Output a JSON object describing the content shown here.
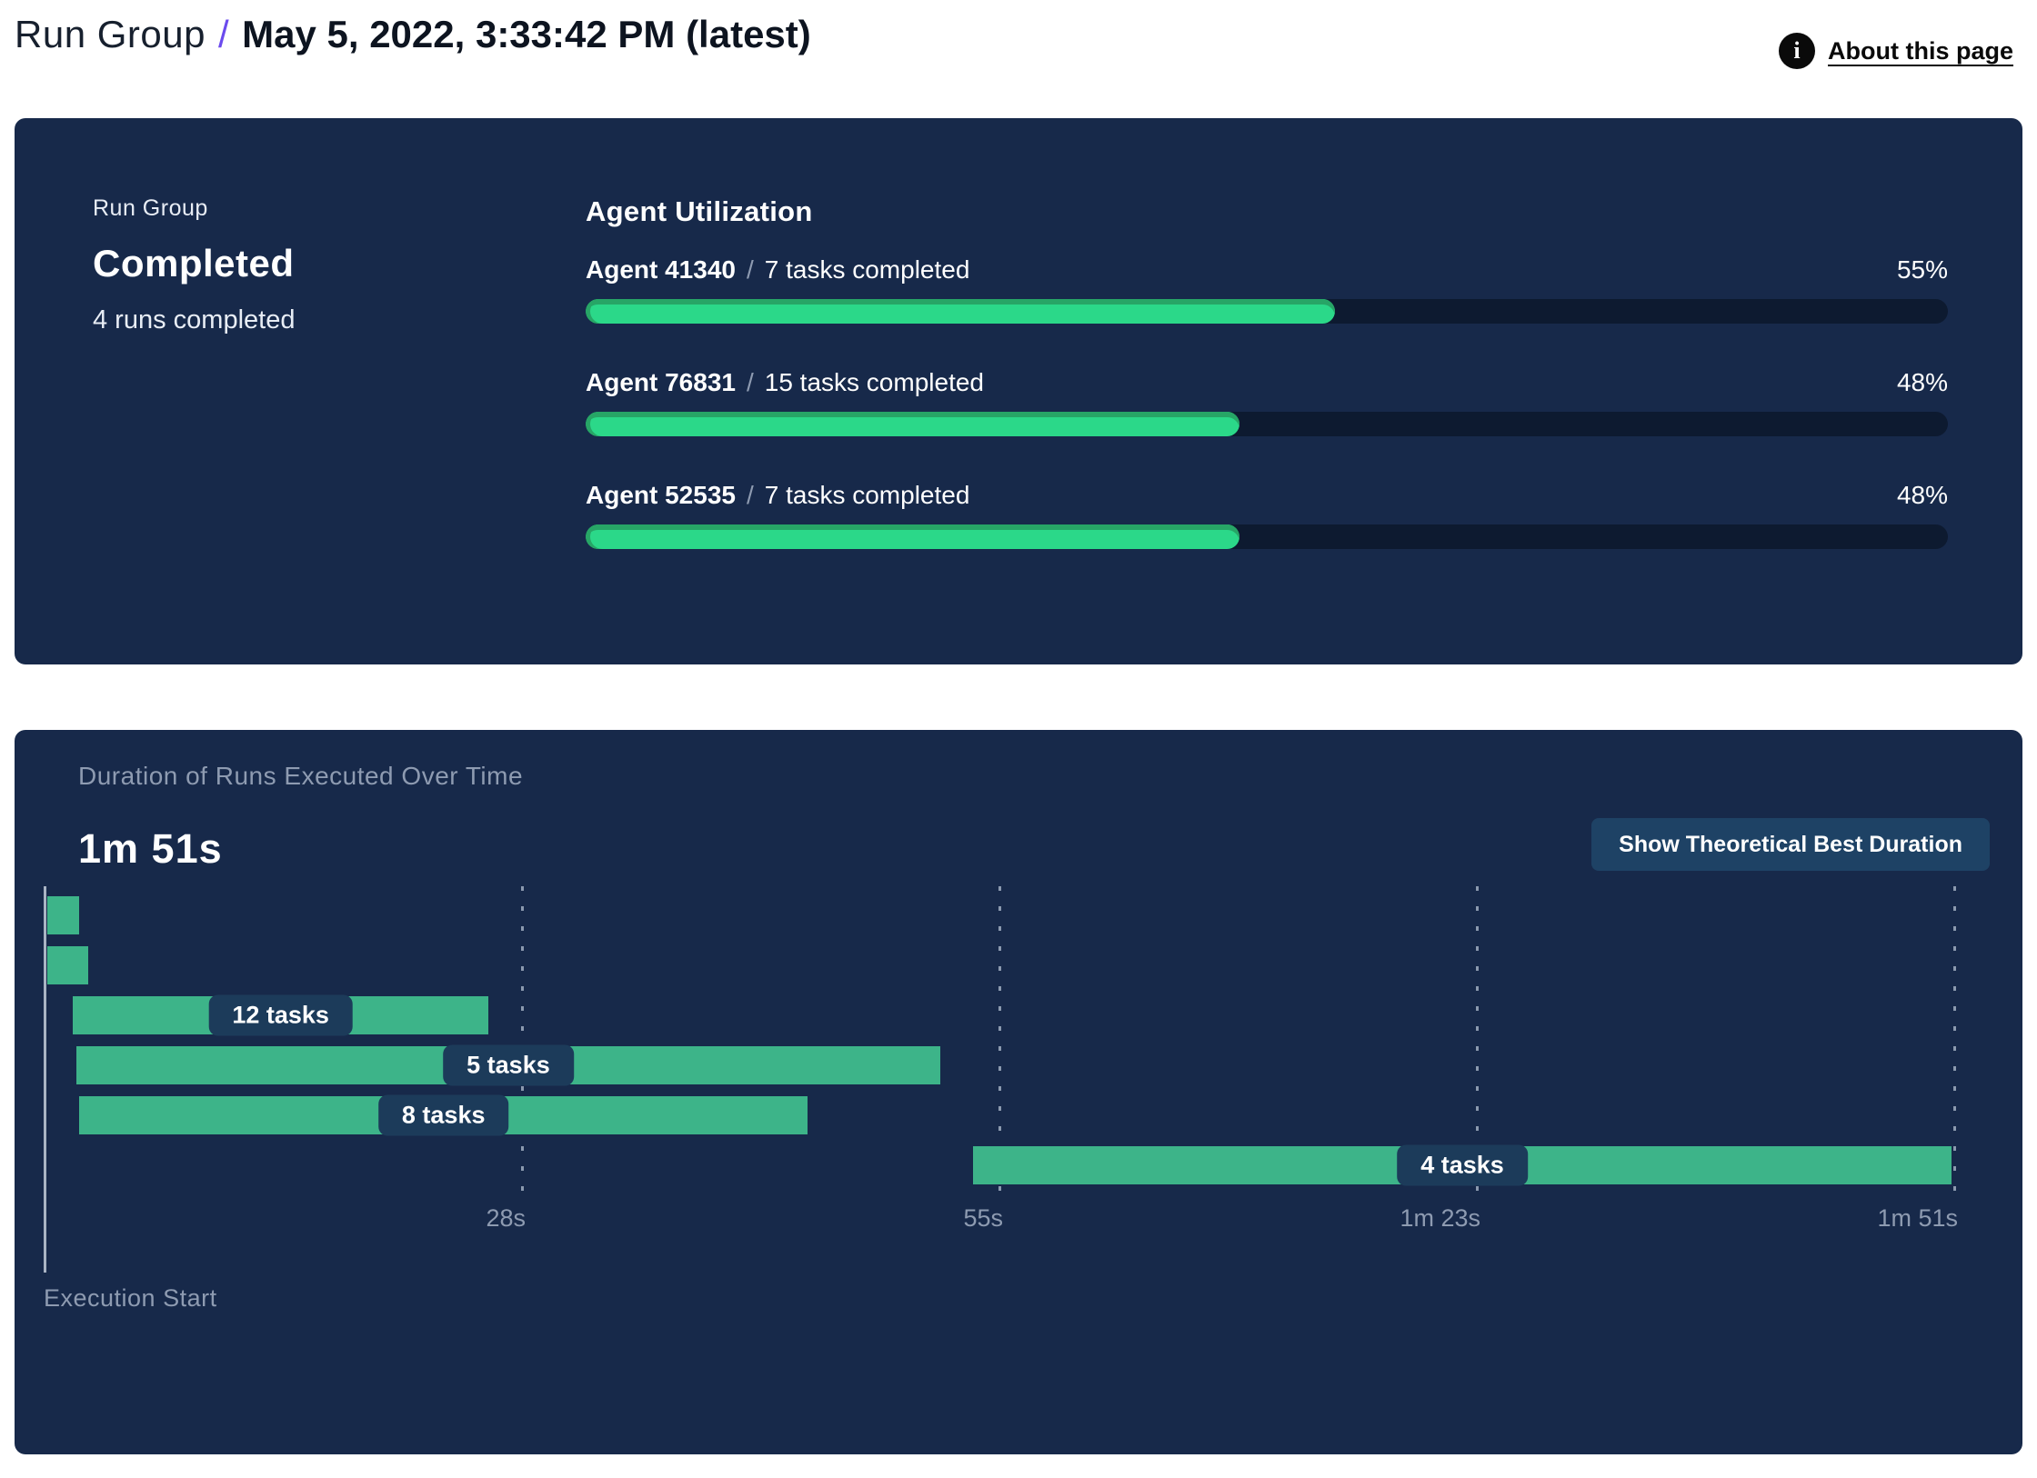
{
  "header": {
    "breadcrumb_group": "Run Group",
    "separator": "/",
    "title": "May 5, 2022, 3:33:42 PM (latest)",
    "about_link": "About this page",
    "info_icon_glyph": "i"
  },
  "colors": {
    "panel_navy": "#17294a",
    "progress_track": "#0d1a30",
    "progress_green": "#2bd889",
    "progress_green_rim": "#27a566",
    "gantt_green": "#3db489",
    "label_pill_navy": "#1c3b5a",
    "muted_text": "#8e9bb1",
    "button_blue": "#1e4265",
    "accent_purple": "#6b4bee"
  },
  "run_group_panel": {
    "label": "Run Group",
    "status": "Completed",
    "runs_completed": "4 runs completed",
    "utilization_heading": "Agent Utilization",
    "agents": [
      {
        "name": "Agent 41340",
        "separator": "/",
        "tasks": "7 tasks completed",
        "percent": 55,
        "percent_label": "55%"
      },
      {
        "name": "Agent 76831",
        "separator": "/",
        "tasks": "15 tasks completed",
        "percent": 48,
        "percent_label": "48%"
      },
      {
        "name": "Agent 52535",
        "separator": "/",
        "tasks": "7 tasks completed",
        "percent": 48,
        "percent_label": "48%"
      }
    ]
  },
  "duration_panel": {
    "title": "Duration of Runs Executed Over Time",
    "total_duration": "1m 51s",
    "button_label": "Show Theoretical Best Duration",
    "execution_start_label": "Execution Start"
  },
  "chart_data": {
    "type": "gantt",
    "title": "Duration of Runs Executed Over Time",
    "total_duration_label": "1m 51s",
    "x_axis": {
      "origin_label": "Execution Start",
      "range_seconds": [
        0,
        112
      ],
      "ticks": [
        {
          "label": "28s",
          "seconds": 28
        },
        {
          "label": "55s",
          "seconds": 56
        },
        {
          "label": "1m 23s",
          "seconds": 84
        },
        {
          "label": "1m 51s",
          "seconds": 112
        }
      ],
      "gridlines": "dashed-vertical"
    },
    "bars": [
      {
        "row": 1,
        "start_seconds": 0.2,
        "end_seconds": 2.1,
        "label": null
      },
      {
        "row": 2,
        "start_seconds": 0.2,
        "end_seconds": 2.6,
        "label": null
      },
      {
        "row": 3,
        "start_seconds": 1.7,
        "end_seconds": 26.1,
        "label": "12 tasks"
      },
      {
        "row": 4,
        "start_seconds": 1.9,
        "end_seconds": 52.6,
        "label": "5 tasks"
      },
      {
        "row": 5,
        "start_seconds": 2.1,
        "end_seconds": 44.8,
        "label": "8 tasks"
      },
      {
        "row": 6,
        "start_seconds": 54.5,
        "end_seconds": 111.9,
        "label": "4 tasks"
      }
    ]
  }
}
